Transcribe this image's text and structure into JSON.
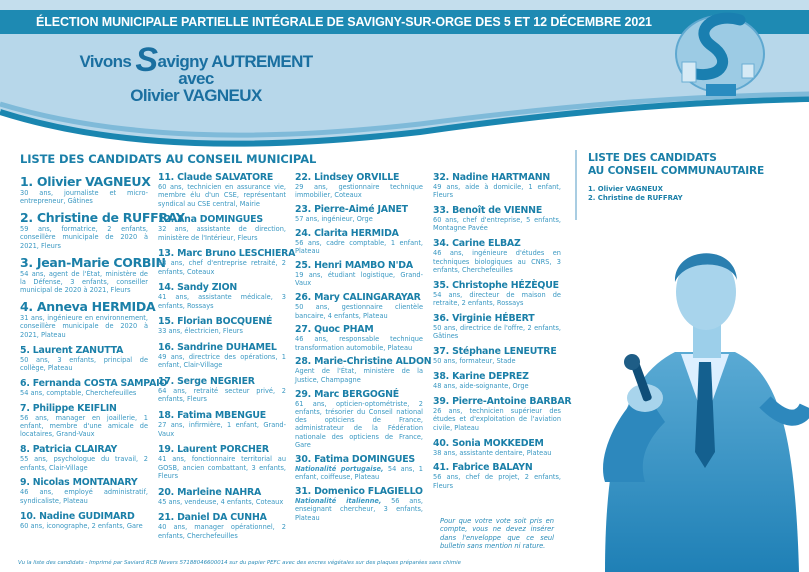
{
  "header": {
    "banner": "ÉLECTION MUNICIPALE PARTIELLE INTÉGRALE DE SAVIGNY-SUR-ORGE DES 5 ET 12 DÉCEMBRE 2021",
    "slogan_line1_pre": "Vivons",
    "slogan_s": "S",
    "slogan_line1_post": "avigny AUTREMENT",
    "slogan_line2": "avec",
    "slogan_line3": "Olivier VAGNEUX"
  },
  "colors": {
    "brand": "#1a88b0",
    "light": "#b3d4e8",
    "text": "#1a7fa8"
  },
  "municipal": {
    "title": "LISTE DES CANDIDATS AU CONSEIL MUNICIPAL",
    "candidates": [
      {
        "name": "1. Olivier VAGNEUX",
        "desc": "30 ans, journaliste et micro-entrepreneur, Gâtines"
      },
      {
        "name": "2. Christine de RUFFRAY",
        "desc": "59 ans, formatrice, 2 enfants, conseillère municipale de 2020 à 2021, Fleurs"
      },
      {
        "name": "3. Jean-Marie CORBIN",
        "desc": "54 ans, agent de l'État, ministère de la Défense, 3 enfants, conseiller municipal de 2020 à 2021, Fleurs"
      },
      {
        "name": "4. Anneva HERMIDA",
        "desc": "31 ans, ingénieure en environnement, conseillère municipale de 2020 à 2021, Plateau"
      },
      {
        "name": "5. Laurent ZANUTTA",
        "desc": "50 ans, 3 enfants, principal de collège, Plateau"
      },
      {
        "name": "6. Fernanda COSTA SAMPAIO",
        "desc": "54 ans, comptable, Cherchefeuilles"
      },
      {
        "name": "7. Philippe KEIFLIN",
        "desc": "56 ans, manager en joaillerie, 1 enfant, membre d'une amicale de locataires, Grand-Vaux"
      },
      {
        "name": "8. Patricia CLAIRAY",
        "desc": "55 ans, psychologue du travail, 2 enfants, Clair-Village"
      },
      {
        "name": "9. Nicolas MONTANARY",
        "desc": "46 ans, employé administratif, syndicaliste, Plateau"
      },
      {
        "name": "10. Nadine GUDIMARD",
        "desc": "60 ans, iconographe, 2 enfants, Gare"
      },
      {
        "name": "11. Claude SALVATORE",
        "desc": "60 ans, technicien en assurance vie, membre élu d'un CSE, représentant syndical au CSE central, Mairie"
      },
      {
        "name": "12. Ana DOMINGUES",
        "desc": "32 ans, assistante de direction, ministère de l'Intérieur, Fleurs"
      },
      {
        "name": "13. Marc Bruno LESCHIERA",
        "desc": "63 ans, chef d'entreprise retraité, 2 enfants, Coteaux"
      },
      {
        "name": "14. Sandy ZION",
        "desc": "41 ans, assistante médicale, 3 enfants, Rossays"
      },
      {
        "name": "15. Florian BOCQUENÉ",
        "desc": "33 ans, électricien, Fleurs"
      },
      {
        "name": "16. Sandrine DUHAMEL",
        "desc": "49 ans, directrice des opérations, 1 enfant, Clair-Village"
      },
      {
        "name": "17. Serge NEGRIER",
        "desc": "64 ans, retraité secteur privé, 2 enfants, Fleurs"
      },
      {
        "name": "18. Fatima MBENGUE",
        "desc": "27 ans, infirmière, 1 enfant, Grand-Vaux"
      },
      {
        "name": "19. Laurent PORCHER",
        "desc": "41 ans, fonctionnaire territorial au GOSB, ancien combattant, 3 enfants, Fleurs"
      },
      {
        "name": "20. Marleine NAHRA",
        "desc": "45 ans, vendeuse, 4 enfants, Coteaux"
      },
      {
        "name": "21. Daniel DA CUNHA",
        "desc": "40 ans, manager opérationnel, 2 enfants, Cherchefeuilles"
      },
      {
        "name": "22. Lindsey ORVILLE",
        "desc": "29 ans, gestionnaire technique immobilier, Coteaux"
      },
      {
        "name": "23. Pierre-Aimé JANET",
        "desc": "57 ans, ingénieur, Orge"
      },
      {
        "name": "24. Clarita HERMIDA",
        "desc": "56 ans, cadre comptable, 1 enfant, Plateau"
      },
      {
        "name": "25. Henri MAMBO N'DA",
        "desc": "19 ans, étudiant logistique, Grand-Vaux"
      },
      {
        "name": "26. Mary CALINGARAYAR",
        "desc": "50 ans, gestionnaire clientèle bancaire, 4 enfants, Plateau"
      },
      {
        "name": "27. Quoc PHAM",
        "desc": "46 ans, responsable technique transformation automobile, Plateau"
      },
      {
        "name": "28. Marie-Christine ALDON",
        "desc": "Agent de l'État, ministère de la Justice, Champagne"
      },
      {
        "name": "29. Marc BERGOGNÉ",
        "desc": "61 ans, opticien-optométriste, 2 enfants, trésorier du Conseil national des opticiens de France, administrateur de la Fédération nationale des opticiens de France, Gare"
      },
      {
        "name": "30. Fatima DOMINGUES",
        "nationality": "Nationalité portugaise,",
        "desc": " 54 ans, 1 enfant, coiffeuse, Plateau"
      },
      {
        "name": "31. Domenico FLAGIELLO",
        "nationality": "Nationalité italienne,",
        "desc": " 56 ans, enseignant chercheur, 3 enfants, Plateau"
      },
      {
        "name": "32. Nadine HARTMANN",
        "desc": "49 ans, aide à domicile, 1 enfant, Fleurs"
      },
      {
        "name": "33. Benoît de VIENNE",
        "desc": "60 ans, chef d'entreprise, 5 enfants, Montagne Pavée"
      },
      {
        "name": "34. Carine ELBAZ",
        "desc": "46 ans, ingénieure d'études en techniques biologiques au CNRS, 3 enfants, Cherchefeuilles"
      },
      {
        "name": "35. Christophe HÉZÈQUE",
        "desc": "54 ans, directeur de maison de retraite, 2 enfants, Rossays"
      },
      {
        "name": "36. Virginie HÉBERT",
        "desc": "50 ans, directrice de l'offre, 2 enfants, Gâtines"
      },
      {
        "name": "37. Stéphane LENEUTRE",
        "desc": "50 ans, formateur, Stade"
      },
      {
        "name": "38. Karine DEPREZ",
        "desc": "48 ans, aide-soignante, Orge"
      },
      {
        "name": "39. Pierre-Antoine BARBAR",
        "desc": "26 ans, technicien supérieur des études et d'exploitation de l'aviation civile, Plateau"
      },
      {
        "name": "40. Sonia MOKKEDEM",
        "desc": "38 ans, assistante dentaire, Plateau"
      },
      {
        "name": "41. Fabrice BALAYN",
        "desc": "56 ans, chef de projet, 2 enfants, Fleurs"
      }
    ],
    "note": "Pour que votre vote soit pris en compte, vous ne devez insérer dans l'enveloppe que ce seul bulletin sans mention ni rature."
  },
  "communautaire": {
    "title_line1": "LISTE DES CANDIDATS",
    "title_line2": "AU CONSEIL COMMUNAUTAIRE",
    "candidates": [
      "1. Olivier VAGNEUX",
      "2. Christine de RUFFRAY"
    ]
  },
  "footer": "Vu la liste des candidats - Imprimé par Saviard RCB Nevers 57188046600014 sur du papier PEFC avec des encres végétales sur des plaques préparées sans chimie"
}
